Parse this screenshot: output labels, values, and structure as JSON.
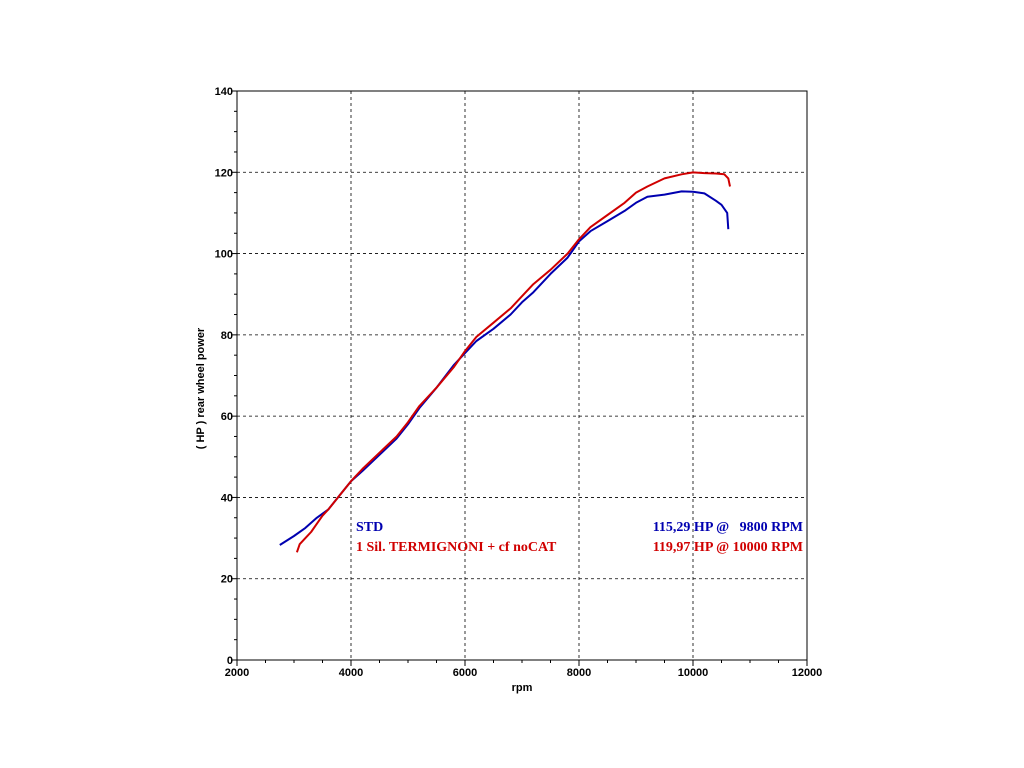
{
  "chart_data": {
    "type": "line",
    "xlabel": "rpm",
    "ylabel": "( HP )   rear  wheel  power",
    "xlim": [
      2000,
      12000
    ],
    "ylim": [
      0,
      140
    ],
    "xticks": [
      2000,
      4000,
      6000,
      8000,
      10000,
      12000
    ],
    "yticks": [
      0,
      20,
      40,
      60,
      80,
      100,
      120,
      140
    ],
    "grid": true,
    "legend_position": "inside-lower-right",
    "series": [
      {
        "name": "STD",
        "peak_label": "115,29 HP @   9800 RPM",
        "color": "#0000b0",
        "x": [
          2750,
          3000,
          3200,
          3400,
          3600,
          3800,
          4000,
          4200,
          4500,
          4800,
          5000,
          5200,
          5500,
          5800,
          6000,
          6200,
          6500,
          6800,
          7000,
          7200,
          7500,
          7800,
          8000,
          8200,
          8500,
          8800,
          9000,
          9200,
          9500,
          9800,
          10000,
          10200,
          10400,
          10500,
          10600,
          10620
        ],
        "y": [
          28.3,
          30.5,
          32.5,
          35,
          37,
          40.5,
          44,
          46.5,
          50.5,
          54.5,
          58,
          62,
          67,
          72.5,
          75.5,
          78.5,
          81.5,
          85,
          88,
          90.5,
          95,
          99,
          103,
          105.5,
          108,
          110.5,
          112.5,
          114,
          114.5,
          115.29,
          115.2,
          114.8,
          113,
          112,
          110,
          106
        ]
      },
      {
        "name": "1 Sil. TERMIGNONI + cf noCAT",
        "peak_label": "119,97 HP @ 10000 RPM",
        "color": "#d00000",
        "x": [
          3050,
          3100,
          3200,
          3300,
          3400,
          3500,
          3600,
          3800,
          4000,
          4200,
          4500,
          4800,
          5000,
          5200,
          5500,
          5800,
          6000,
          6200,
          6500,
          6800,
          7000,
          7200,
          7500,
          7800,
          8000,
          8200,
          8500,
          8800,
          9000,
          9200,
          9500,
          9800,
          10000,
          10200,
          10400,
          10550,
          10620,
          10650
        ],
        "y": [
          26.5,
          28.5,
          30,
          31.5,
          33.5,
          35.5,
          37,
          40.5,
          44,
          47,
          51,
          55,
          58.5,
          62.5,
          67,
          72,
          76,
          79.5,
          83,
          86.5,
          89.5,
          92.5,
          96,
          100,
          103.5,
          106.5,
          109.5,
          112.5,
          115,
          116.5,
          118.5,
          119.5,
          119.97,
          119.8,
          119.7,
          119.5,
          118.5,
          116.5
        ]
      }
    ]
  }
}
